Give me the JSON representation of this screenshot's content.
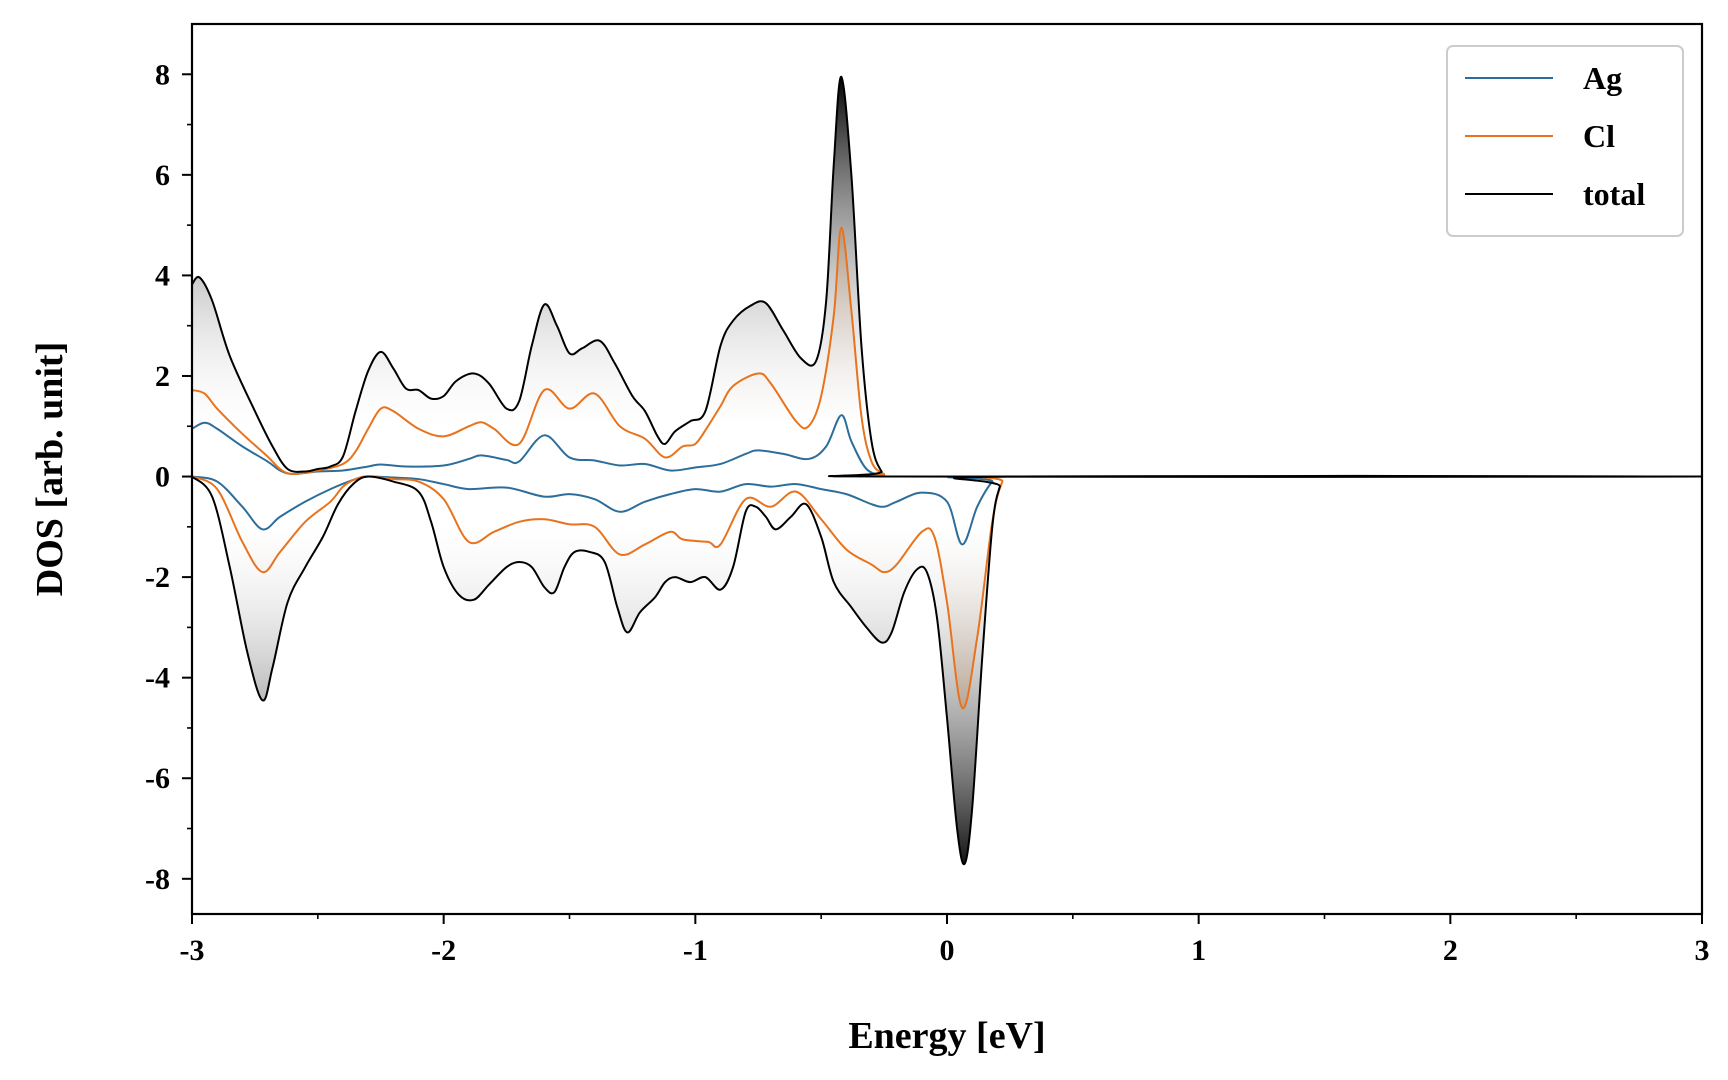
{
  "chart_data": {
    "type": "area",
    "title": "",
    "xlabel": "Energy [eV]",
    "ylabel": "DOS [arb. unit]",
    "xlim": [
      -3,
      3
    ],
    "ylim": [
      -8.7,
      9.0
    ],
    "x_ticks": [
      -3,
      -2,
      -1,
      0,
      1,
      2,
      3
    ],
    "x_tick_labels": [
      "-3",
      "-2",
      "-1",
      "0",
      "1",
      "2",
      "3"
    ],
    "x_minor_step": 0.5,
    "y_ticks": [
      -8,
      -6,
      -4,
      -2,
      0,
      2,
      4,
      6,
      8
    ],
    "y_tick_labels": [
      "-8",
      "-6",
      "-4",
      "-2",
      "0",
      "2",
      "4",
      "6",
      "8"
    ],
    "y_minor_step": 1,
    "grid": false,
    "legend_position": "top-right",
    "series": [
      {
        "name": "Ag",
        "color": "#2c6e9b",
        "up": [
          [
            -3.0,
            0.95
          ],
          [
            -2.95,
            1.07
          ],
          [
            -2.9,
            0.95
          ],
          [
            -2.8,
            0.6
          ],
          [
            -2.7,
            0.3
          ],
          [
            -2.65,
            0.12
          ],
          [
            -2.6,
            0.05
          ],
          [
            -2.5,
            0.1
          ],
          [
            -2.4,
            0.12
          ],
          [
            -2.3,
            0.2
          ],
          [
            -2.25,
            0.24
          ],
          [
            -2.15,
            0.2
          ],
          [
            -2.0,
            0.22
          ],
          [
            -1.9,
            0.35
          ],
          [
            -1.85,
            0.42
          ],
          [
            -1.75,
            0.33
          ],
          [
            -1.7,
            0.3
          ],
          [
            -1.6,
            0.82
          ],
          [
            -1.5,
            0.38
          ],
          [
            -1.4,
            0.32
          ],
          [
            -1.3,
            0.22
          ],
          [
            -1.2,
            0.25
          ],
          [
            -1.1,
            0.12
          ],
          [
            -1.0,
            0.18
          ],
          [
            -0.9,
            0.25
          ],
          [
            -0.8,
            0.45
          ],
          [
            -0.75,
            0.52
          ],
          [
            -0.65,
            0.45
          ],
          [
            -0.55,
            0.35
          ],
          [
            -0.48,
            0.6
          ],
          [
            -0.42,
            1.22
          ],
          [
            -0.38,
            0.7
          ],
          [
            -0.32,
            0.15
          ],
          [
            -0.25,
            0.02
          ],
          [
            -0.2,
            0.0
          ],
          [
            3.0,
            0.0
          ]
        ],
        "down": [
          [
            -3.0,
            0.0
          ],
          [
            -2.9,
            -0.1
          ],
          [
            -2.8,
            -0.6
          ],
          [
            -2.72,
            -1.05
          ],
          [
            -2.65,
            -0.8
          ],
          [
            -2.55,
            -0.5
          ],
          [
            -2.45,
            -0.25
          ],
          [
            -2.35,
            -0.05
          ],
          [
            -2.3,
            0.0
          ],
          [
            -2.2,
            -0.02
          ],
          [
            -2.1,
            -0.05
          ],
          [
            -2.0,
            -0.15
          ],
          [
            -1.9,
            -0.25
          ],
          [
            -1.75,
            -0.22
          ],
          [
            -1.6,
            -0.4
          ],
          [
            -1.5,
            -0.35
          ],
          [
            -1.4,
            -0.45
          ],
          [
            -1.3,
            -0.7
          ],
          [
            -1.2,
            -0.5
          ],
          [
            -1.1,
            -0.35
          ],
          [
            -1.0,
            -0.25
          ],
          [
            -0.9,
            -0.3
          ],
          [
            -0.8,
            -0.15
          ],
          [
            -0.7,
            -0.2
          ],
          [
            -0.6,
            -0.15
          ],
          [
            -0.5,
            -0.25
          ],
          [
            -0.4,
            -0.35
          ],
          [
            -0.3,
            -0.55
          ],
          [
            -0.25,
            -0.6
          ],
          [
            -0.2,
            -0.5
          ],
          [
            -0.1,
            -0.32
          ],
          [
            0.0,
            -0.5
          ],
          [
            0.06,
            -1.35
          ],
          [
            0.12,
            -0.6
          ],
          [
            0.18,
            -0.1
          ],
          [
            0.22,
            0.0
          ],
          [
            3.0,
            0.0
          ]
        ]
      },
      {
        "name": "Cl",
        "color": "#e8731c",
        "up": [
          [
            -3.0,
            1.72
          ],
          [
            -2.95,
            1.65
          ],
          [
            -2.9,
            1.35
          ],
          [
            -2.8,
            0.85
          ],
          [
            -2.7,
            0.4
          ],
          [
            -2.65,
            0.15
          ],
          [
            -2.6,
            0.05
          ],
          [
            -2.5,
            0.12
          ],
          [
            -2.4,
            0.25
          ],
          [
            -2.35,
            0.5
          ],
          [
            -2.3,
            0.95
          ],
          [
            -2.25,
            1.35
          ],
          [
            -2.2,
            1.3
          ],
          [
            -2.1,
            0.95
          ],
          [
            -2.0,
            0.8
          ],
          [
            -1.9,
            1.0
          ],
          [
            -1.85,
            1.08
          ],
          [
            -1.8,
            0.95
          ],
          [
            -1.7,
            0.65
          ],
          [
            -1.6,
            1.72
          ],
          [
            -1.5,
            1.35
          ],
          [
            -1.4,
            1.65
          ],
          [
            -1.3,
            1.0
          ],
          [
            -1.2,
            0.75
          ],
          [
            -1.12,
            0.38
          ],
          [
            -1.05,
            0.6
          ],
          [
            -1.0,
            0.65
          ],
          [
            -0.95,
            1.0
          ],
          [
            -0.9,
            1.4
          ],
          [
            -0.85,
            1.8
          ],
          [
            -0.75,
            2.05
          ],
          [
            -0.7,
            1.85
          ],
          [
            -0.6,
            1.1
          ],
          [
            -0.55,
            1.0
          ],
          [
            -0.5,
            1.6
          ],
          [
            -0.45,
            3.2
          ],
          [
            -0.42,
            4.95
          ],
          [
            -0.38,
            3.3
          ],
          [
            -0.34,
            1.2
          ],
          [
            -0.3,
            0.3
          ],
          [
            -0.25,
            0.05
          ],
          [
            -0.2,
            0.0
          ],
          [
            3.0,
            0.0
          ]
        ],
        "down": [
          [
            -3.0,
            0.0
          ],
          [
            -2.9,
            -0.25
          ],
          [
            -2.8,
            -1.3
          ],
          [
            -2.72,
            -1.9
          ],
          [
            -2.65,
            -1.5
          ],
          [
            -2.55,
            -0.9
          ],
          [
            -2.45,
            -0.5
          ],
          [
            -2.4,
            -0.2
          ],
          [
            -2.35,
            -0.05
          ],
          [
            -2.3,
            0.0
          ],
          [
            -2.2,
            -0.05
          ],
          [
            -2.1,
            -0.1
          ],
          [
            -2.0,
            -0.45
          ],
          [
            -1.9,
            -1.3
          ],
          [
            -1.8,
            -1.1
          ],
          [
            -1.7,
            -0.9
          ],
          [
            -1.6,
            -0.85
          ],
          [
            -1.5,
            -0.95
          ],
          [
            -1.4,
            -1.0
          ],
          [
            -1.3,
            -1.55
          ],
          [
            -1.2,
            -1.35
          ],
          [
            -1.1,
            -1.1
          ],
          [
            -1.05,
            -1.25
          ],
          [
            -0.95,
            -1.3
          ],
          [
            -0.9,
            -1.35
          ],
          [
            -0.8,
            -0.45
          ],
          [
            -0.7,
            -0.6
          ],
          [
            -0.6,
            -0.3
          ],
          [
            -0.5,
            -0.85
          ],
          [
            -0.4,
            -1.45
          ],
          [
            -0.3,
            -1.75
          ],
          [
            -0.25,
            -1.9
          ],
          [
            -0.2,
            -1.75
          ],
          [
            -0.1,
            -1.1
          ],
          [
            -0.05,
            -1.2
          ],
          [
            0.0,
            -2.5
          ],
          [
            0.06,
            -4.6
          ],
          [
            0.12,
            -3.2
          ],
          [
            0.18,
            -0.9
          ],
          [
            0.22,
            -0.1
          ],
          [
            0.25,
            0.0
          ],
          [
            3.0,
            0.0
          ]
        ]
      },
      {
        "name": "total",
        "color": "#000000",
        "up": [
          [
            -3.0,
            3.82
          ],
          [
            -2.97,
            3.96
          ],
          [
            -2.92,
            3.5
          ],
          [
            -2.85,
            2.4
          ],
          [
            -2.75,
            1.3
          ],
          [
            -2.68,
            0.6
          ],
          [
            -2.62,
            0.15
          ],
          [
            -2.55,
            0.1
          ],
          [
            -2.5,
            0.15
          ],
          [
            -2.45,
            0.2
          ],
          [
            -2.4,
            0.4
          ],
          [
            -2.35,
            1.3
          ],
          [
            -2.3,
            2.1
          ],
          [
            -2.25,
            2.48
          ],
          [
            -2.2,
            2.15
          ],
          [
            -2.15,
            1.75
          ],
          [
            -2.1,
            1.72
          ],
          [
            -2.05,
            1.55
          ],
          [
            -2.0,
            1.6
          ],
          [
            -1.95,
            1.9
          ],
          [
            -1.88,
            2.05
          ],
          [
            -1.82,
            1.85
          ],
          [
            -1.75,
            1.35
          ],
          [
            -1.7,
            1.5
          ],
          [
            -1.65,
            2.6
          ],
          [
            -1.6,
            3.42
          ],
          [
            -1.55,
            3.0
          ],
          [
            -1.5,
            2.45
          ],
          [
            -1.45,
            2.55
          ],
          [
            -1.38,
            2.7
          ],
          [
            -1.32,
            2.25
          ],
          [
            -1.25,
            1.6
          ],
          [
            -1.2,
            1.3
          ],
          [
            -1.15,
            0.8
          ],
          [
            -1.12,
            0.65
          ],
          [
            -1.08,
            0.9
          ],
          [
            -1.02,
            1.1
          ],
          [
            -0.96,
            1.3
          ],
          [
            -0.9,
            2.6
          ],
          [
            -0.85,
            3.1
          ],
          [
            -0.78,
            3.4
          ],
          [
            -0.72,
            3.45
          ],
          [
            -0.65,
            2.9
          ],
          [
            -0.58,
            2.35
          ],
          [
            -0.52,
            2.3
          ],
          [
            -0.48,
            3.5
          ],
          [
            -0.45,
            6.2
          ],
          [
            -0.42,
            7.95
          ],
          [
            -0.38,
            6.0
          ],
          [
            -0.34,
            2.6
          ],
          [
            -0.3,
            0.7
          ],
          [
            -0.26,
            0.1
          ],
          [
            -0.22,
            0.0
          ],
          [
            3.0,
            0.0
          ]
        ],
        "down": [
          [
            -3.0,
            0.0
          ],
          [
            -2.92,
            -0.4
          ],
          [
            -2.85,
            -1.8
          ],
          [
            -2.78,
            -3.5
          ],
          [
            -2.72,
            -4.45
          ],
          [
            -2.68,
            -3.8
          ],
          [
            -2.62,
            -2.5
          ],
          [
            -2.55,
            -1.8
          ],
          [
            -2.48,
            -1.2
          ],
          [
            -2.42,
            -0.55
          ],
          [
            -2.36,
            -0.15
          ],
          [
            -2.3,
            0.0
          ],
          [
            -2.2,
            -0.1
          ],
          [
            -2.1,
            -0.3
          ],
          [
            -2.05,
            -0.9
          ],
          [
            -2.0,
            -1.8
          ],
          [
            -1.94,
            -2.35
          ],
          [
            -1.88,
            -2.45
          ],
          [
            -1.82,
            -2.15
          ],
          [
            -1.75,
            -1.8
          ],
          [
            -1.7,
            -1.7
          ],
          [
            -1.65,
            -1.8
          ],
          [
            -1.6,
            -2.2
          ],
          [
            -1.56,
            -2.3
          ],
          [
            -1.52,
            -1.8
          ],
          [
            -1.48,
            -1.5
          ],
          [
            -1.42,
            -1.5
          ],
          [
            -1.36,
            -1.7
          ],
          [
            -1.31,
            -2.6
          ],
          [
            -1.27,
            -3.1
          ],
          [
            -1.22,
            -2.7
          ],
          [
            -1.16,
            -2.4
          ],
          [
            -1.12,
            -2.1
          ],
          [
            -1.08,
            -2.0
          ],
          [
            -1.02,
            -2.1
          ],
          [
            -0.96,
            -2.0
          ],
          [
            -0.9,
            -2.25
          ],
          [
            -0.85,
            -1.8
          ],
          [
            -0.8,
            -0.7
          ],
          [
            -0.76,
            -0.6
          ],
          [
            -0.72,
            -0.8
          ],
          [
            -0.68,
            -1.05
          ],
          [
            -0.62,
            -0.8
          ],
          [
            -0.56,
            -0.55
          ],
          [
            -0.5,
            -1.2
          ],
          [
            -0.45,
            -2.1
          ],
          [
            -0.38,
            -2.6
          ],
          [
            -0.32,
            -3.0
          ],
          [
            -0.26,
            -3.3
          ],
          [
            -0.22,
            -3.1
          ],
          [
            -0.17,
            -2.3
          ],
          [
            -0.12,
            -1.85
          ],
          [
            -0.08,
            -1.9
          ],
          [
            -0.04,
            -2.8
          ],
          [
            0.0,
            -4.8
          ],
          [
            0.04,
            -7.0
          ],
          [
            0.07,
            -7.7
          ],
          [
            0.1,
            -6.6
          ],
          [
            0.14,
            -3.6
          ],
          [
            0.18,
            -1.0
          ],
          [
            0.21,
            -0.2
          ],
          [
            0.24,
            0.0
          ],
          [
            3.0,
            0.0
          ]
        ]
      }
    ]
  }
}
